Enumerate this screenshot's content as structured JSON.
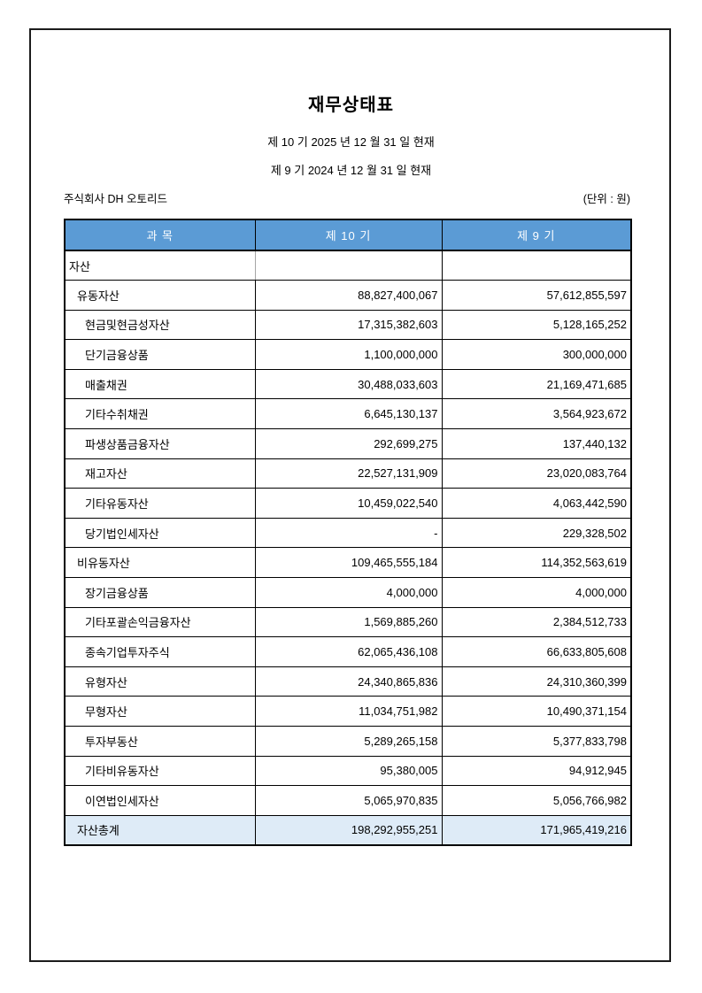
{
  "document": {
    "title": "재무상태표",
    "period_line_1": "제 10 기  2025 년 12 월 31 일 현재",
    "period_line_2": "제 9 기  2024 년 12 월 31 일 현재",
    "company": "주식회사  DH 오토리드",
    "unit_note": "(단위 : 원)"
  },
  "table": {
    "headers": [
      "과  목",
      "제 10 기",
      "제 9 기"
    ],
    "colors": {
      "header_bg": "#5B9BD5",
      "header_text": "#FFFFFF",
      "total_bg": "#DEEBF7",
      "border": "#000000"
    },
    "rows": [
      {
        "label": "자산",
        "indent": 0,
        "v10": "",
        "v9": "",
        "total": false
      },
      {
        "label": "유동자산",
        "indent": 1,
        "v10": "88,827,400,067",
        "v9": "57,612,855,597",
        "total": false
      },
      {
        "label": "현금및현금성자산",
        "indent": 2,
        "v10": "17,315,382,603",
        "v9": "5,128,165,252",
        "total": false
      },
      {
        "label": "단기금융상품",
        "indent": 2,
        "v10": "1,100,000,000",
        "v9": "300,000,000",
        "total": false
      },
      {
        "label": "매출채권",
        "indent": 2,
        "v10": "30,488,033,603",
        "v9": "21,169,471,685",
        "total": false
      },
      {
        "label": "기타수취채권",
        "indent": 2,
        "v10": "6,645,130,137",
        "v9": "3,564,923,672",
        "total": false
      },
      {
        "label": "파생상품금융자산",
        "indent": 2,
        "v10": "292,699,275",
        "v9": "137,440,132",
        "total": false
      },
      {
        "label": "재고자산",
        "indent": 2,
        "v10": "22,527,131,909",
        "v9": "23,020,083,764",
        "total": false
      },
      {
        "label": "기타유동자산",
        "indent": 2,
        "v10": "10,459,022,540",
        "v9": "4,063,442,590",
        "total": false
      },
      {
        "label": "당기법인세자산",
        "indent": 2,
        "v10": "-",
        "v9": "229,328,502",
        "total": false
      },
      {
        "label": "비유동자산",
        "indent": 1,
        "v10": "109,465,555,184",
        "v9": "114,352,563,619",
        "total": false
      },
      {
        "label": "장기금융상품",
        "indent": 2,
        "v10": "4,000,000",
        "v9": "4,000,000",
        "total": false
      },
      {
        "label": "기타포괄손익금융자산",
        "indent": 2,
        "v10": "1,569,885,260",
        "v9": "2,384,512,733",
        "total": false
      },
      {
        "label": "종속기업투자주식",
        "indent": 2,
        "v10": "62,065,436,108",
        "v9": "66,633,805,608",
        "total": false
      },
      {
        "label": "유형자산",
        "indent": 2,
        "v10": "24,340,865,836",
        "v9": "24,310,360,399",
        "total": false
      },
      {
        "label": "무형자산",
        "indent": 2,
        "v10": "11,034,751,982",
        "v9": "10,490,371,154",
        "total": false
      },
      {
        "label": "투자부동산",
        "indent": 2,
        "v10": "5,289,265,158",
        "v9": "5,377,833,798",
        "total": false
      },
      {
        "label": "기타비유동자산",
        "indent": 2,
        "v10": "95,380,005",
        "v9": "94,912,945",
        "total": false
      },
      {
        "label": "이연법인세자산",
        "indent": 2,
        "v10": "5,065,970,835",
        "v9": "5,056,766,982",
        "total": false
      },
      {
        "label": "자산총계",
        "indent": 1,
        "v10": "198,292,955,251",
        "v9": "171,965,419,216",
        "total": true
      }
    ]
  }
}
